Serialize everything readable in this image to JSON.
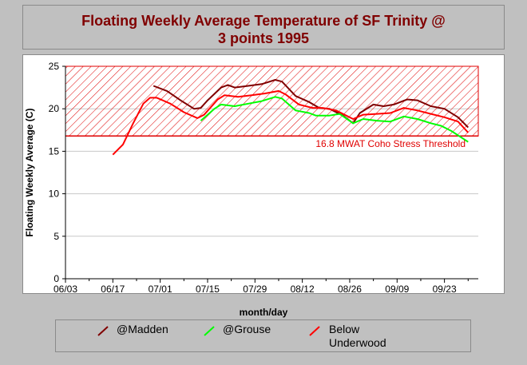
{
  "chart_data": {
    "type": "line",
    "title_line1": "Floating Weekly Average Temperature of SF Trinity @",
    "title_line2": "3 points 1995",
    "xlabel": "month/day",
    "ylabel": "Floating Weekly Average (C)",
    "xtick_labels": [
      "06/03",
      "06/17",
      "07/01",
      "07/15",
      "07/29",
      "08/12",
      "08/26",
      "09/09",
      "09/23"
    ],
    "ytick_labels": [
      "0",
      "5",
      "10",
      "15",
      "20",
      "25"
    ],
    "ylim": [
      0,
      25
    ],
    "xlim": [
      "1995-06-03",
      "1995-10-03"
    ],
    "grid": true,
    "threshold": {
      "value": 16.8,
      "label": "16.8 MWAT Coho Stress Threshold",
      "color": "#e00000"
    },
    "series": [
      {
        "name": "@Madden",
        "color": "#800000",
        "points": [
          [
            "1995-06-29",
            22.7
          ],
          [
            "1995-07-03",
            22.1
          ],
          [
            "1995-07-07",
            21.0
          ],
          [
            "1995-07-11",
            20.0
          ],
          [
            "1995-07-13",
            20.1
          ],
          [
            "1995-07-15",
            21.0
          ],
          [
            "1995-07-19",
            22.5
          ],
          [
            "1995-07-21",
            22.8
          ],
          [
            "1995-07-23",
            22.5
          ],
          [
            "1995-07-27",
            22.7
          ],
          [
            "1995-07-31",
            22.9
          ],
          [
            "1995-08-04",
            23.4
          ],
          [
            "1995-08-06",
            23.2
          ],
          [
            "1995-08-10",
            21.5
          ],
          [
            "1995-08-14",
            20.8
          ],
          [
            "1995-08-17",
            20.1
          ],
          [
            "1995-08-20",
            20.0
          ],
          [
            "1995-08-24",
            19.2
          ],
          [
            "1995-08-27",
            18.3
          ],
          [
            "1995-08-29",
            19.5
          ],
          [
            "1995-09-02",
            20.5
          ],
          [
            "1995-09-05",
            20.3
          ],
          [
            "1995-09-08",
            20.5
          ],
          [
            "1995-09-12",
            21.1
          ],
          [
            "1995-09-15",
            21.0
          ],
          [
            "1995-09-19",
            20.3
          ],
          [
            "1995-09-23",
            20.0
          ],
          [
            "1995-09-27",
            19.0
          ],
          [
            "1995-09-30",
            17.8
          ]
        ]
      },
      {
        "name": "@Grouse",
        "color": "#00ff00",
        "points": [
          [
            "1995-07-13",
            18.6
          ],
          [
            "1995-07-17",
            20.0
          ],
          [
            "1995-07-19",
            20.5
          ],
          [
            "1995-07-23",
            20.3
          ],
          [
            "1995-07-27",
            20.6
          ],
          [
            "1995-07-31",
            20.9
          ],
          [
            "1995-08-04",
            21.4
          ],
          [
            "1995-08-06",
            21.2
          ],
          [
            "1995-08-10",
            19.8
          ],
          [
            "1995-08-14",
            19.5
          ],
          [
            "1995-08-16",
            19.2
          ],
          [
            "1995-08-20",
            19.2
          ],
          [
            "1995-08-23",
            19.4
          ],
          [
            "1995-08-27",
            18.3
          ],
          [
            "1995-08-30",
            18.8
          ],
          [
            "1995-09-03",
            18.6
          ],
          [
            "1995-09-07",
            18.5
          ],
          [
            "1995-09-11",
            19.1
          ],
          [
            "1995-09-15",
            18.8
          ],
          [
            "1995-09-19",
            18.3
          ],
          [
            "1995-09-22",
            18.0
          ],
          [
            "1995-09-25",
            17.4
          ],
          [
            "1995-09-30",
            16.1
          ]
        ]
      },
      {
        "name": "Below Underwood",
        "color": "#ff0000",
        "points": [
          [
            "1995-06-17",
            14.6
          ],
          [
            "1995-06-20",
            15.8
          ],
          [
            "1995-06-23",
            18.3
          ],
          [
            "1995-06-26",
            20.6
          ],
          [
            "1995-06-28",
            21.3
          ],
          [
            "1995-06-30",
            21.3
          ],
          [
            "1995-07-04",
            20.6
          ],
          [
            "1995-07-08",
            19.6
          ],
          [
            "1995-07-12",
            18.9
          ],
          [
            "1995-07-14",
            19.3
          ],
          [
            "1995-07-18",
            21.1
          ],
          [
            "1995-07-20",
            21.6
          ],
          [
            "1995-07-24",
            21.4
          ],
          [
            "1995-07-28",
            21.6
          ],
          [
            "1995-08-01",
            21.8
          ],
          [
            "1995-08-05",
            22.1
          ],
          [
            "1995-08-07",
            21.7
          ],
          [
            "1995-08-11",
            20.5
          ],
          [
            "1995-08-15",
            20.1
          ],
          [
            "1995-08-18",
            20.1
          ],
          [
            "1995-08-22",
            19.8
          ],
          [
            "1995-08-27",
            18.8
          ],
          [
            "1995-08-30",
            19.3
          ],
          [
            "1995-09-03",
            19.4
          ],
          [
            "1995-09-07",
            19.5
          ],
          [
            "1995-09-11",
            20.1
          ],
          [
            "1995-09-15",
            19.8
          ],
          [
            "1995-09-19",
            19.4
          ],
          [
            "1995-09-23",
            19.0
          ],
          [
            "1995-09-27",
            18.5
          ],
          [
            "1995-09-30",
            17.2
          ]
        ]
      }
    ]
  },
  "legend": {
    "madden_label": "@Madden",
    "grouse_label": "@Grouse",
    "underwood_line1": "Below",
    "underwood_line2": "Underwood"
  }
}
